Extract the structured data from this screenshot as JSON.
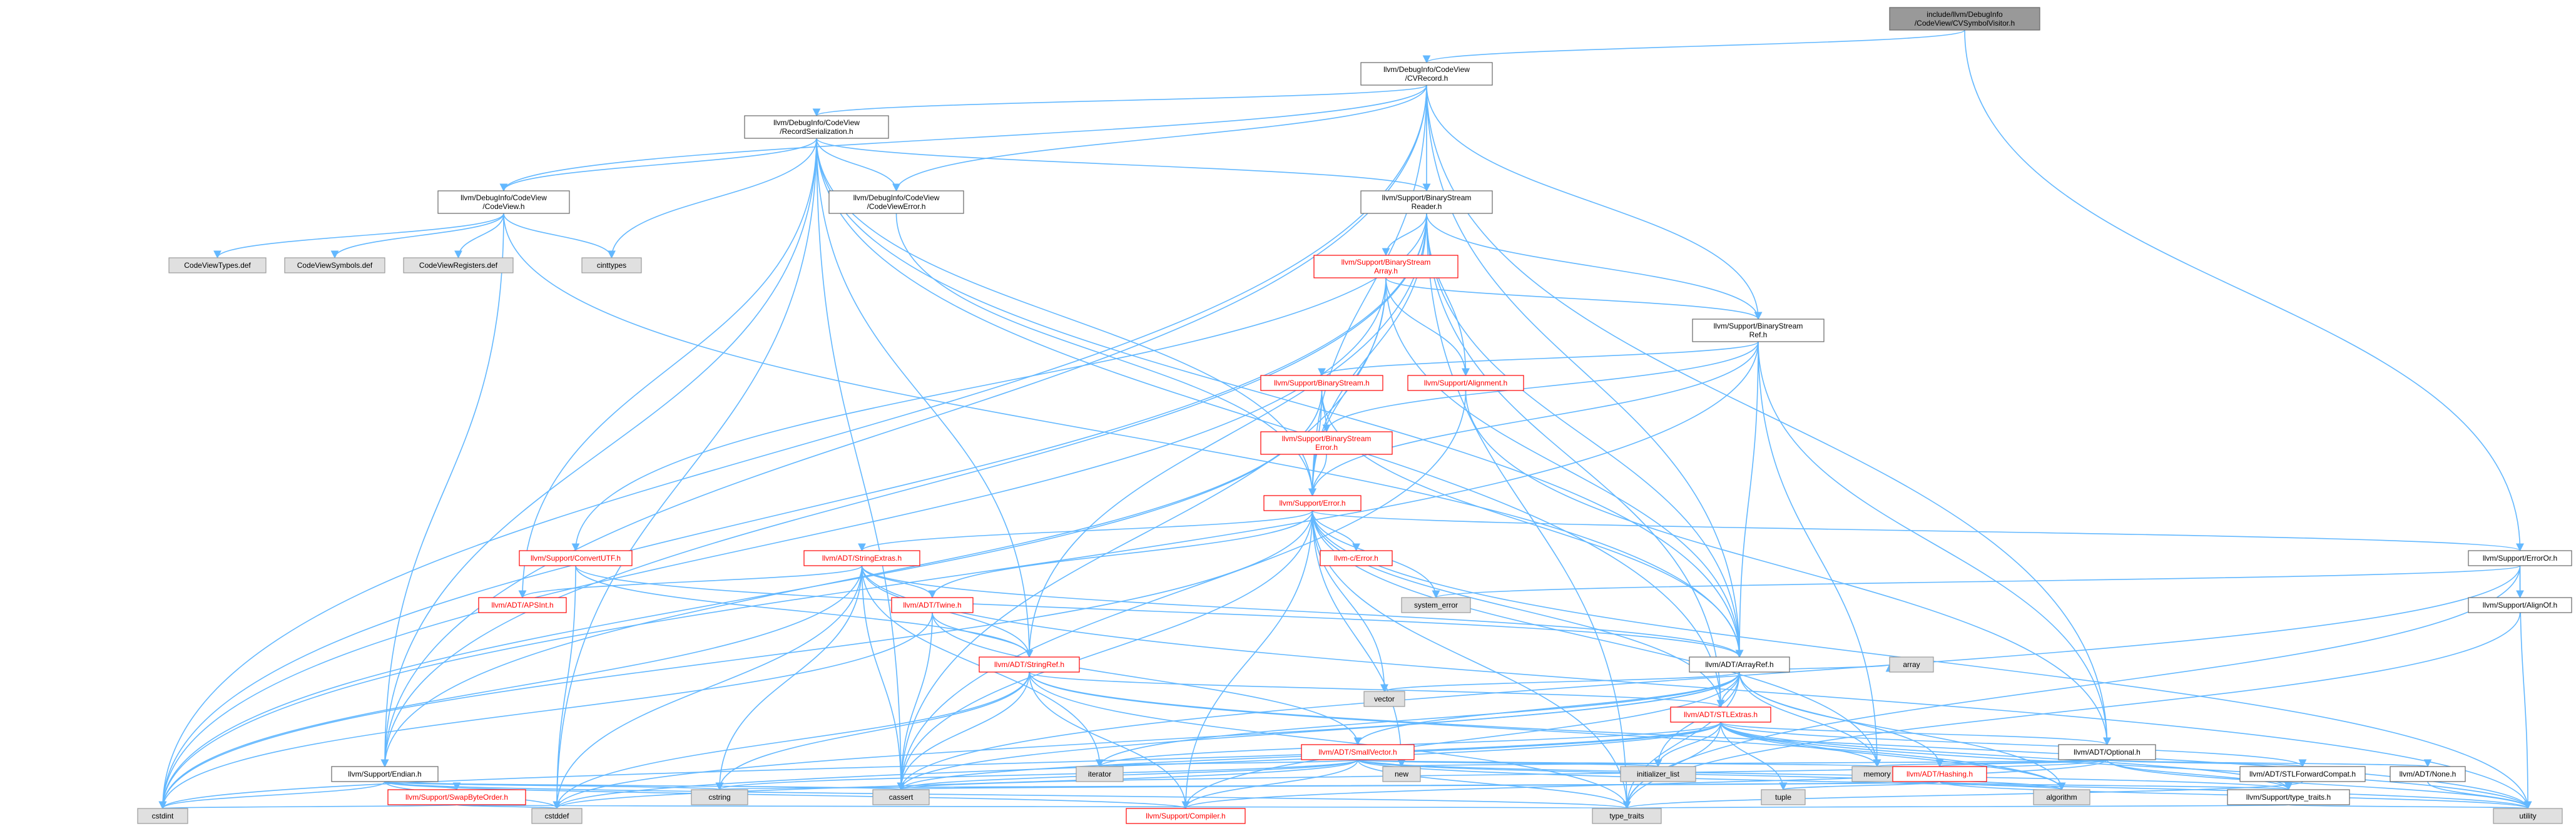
{
  "nodes": [
    {
      "id": "root",
      "lines": [
        "include/llvm/DebugInfo",
        "/CodeView/CVSymbolVisitor.h"
      ],
      "kind": "root"
    },
    {
      "id": "cvrecord",
      "lines": [
        "llvm/DebugInfo/CodeView",
        "/CVRecord.h"
      ],
      "kind": "white"
    },
    {
      "id": "recser",
      "lines": [
        "llvm/DebugInfo/CodeView",
        "/RecordSerialization.h"
      ],
      "kind": "white"
    },
    {
      "id": "codeview",
      "lines": [
        "llvm/DebugInfo/CodeView",
        "/CodeView.h"
      ],
      "kind": "white"
    },
    {
      "id": "cverror",
      "lines": [
        "llvm/DebugInfo/CodeView",
        "/CodeViewError.h"
      ],
      "kind": "white"
    },
    {
      "id": "bsreader",
      "lines": [
        "llvm/Support/BinaryStream",
        "Reader.h"
      ],
      "kind": "white"
    },
    {
      "id": "cvtypes",
      "lines": [
        "CodeViewTypes.def"
      ],
      "kind": "gray"
    },
    {
      "id": "cvsymbols",
      "lines": [
        "CodeViewSymbols.def"
      ],
      "kind": "gray"
    },
    {
      "id": "cvregisters",
      "lines": [
        "CodeViewRegisters.def"
      ],
      "kind": "gray"
    },
    {
      "id": "cinttypes",
      "lines": [
        "cinttypes"
      ],
      "kind": "gray"
    },
    {
      "id": "bsarray",
      "lines": [
        "llvm/Support/BinaryStream",
        "Array.h"
      ],
      "kind": "red"
    },
    {
      "id": "bsref",
      "lines": [
        "llvm/Support/BinaryStream",
        "Ref.h"
      ],
      "kind": "white"
    },
    {
      "id": "bstream",
      "lines": [
        "llvm/Support/BinaryStream.h"
      ],
      "kind": "red"
    },
    {
      "id": "alignment",
      "lines": [
        "llvm/Support/Alignment.h"
      ],
      "kind": "red"
    },
    {
      "id": "bserror",
      "lines": [
        "llvm/Support/BinaryStream",
        "Error.h"
      ],
      "kind": "red"
    },
    {
      "id": "error",
      "lines": [
        "llvm/Support/Error.h"
      ],
      "kind": "red"
    },
    {
      "id": "convutf",
      "lines": [
        "llvm/Support/ConvertUTF.h"
      ],
      "kind": "red"
    },
    {
      "id": "strextras",
      "lines": [
        "llvm/ADT/StringExtras.h"
      ],
      "kind": "red"
    },
    {
      "id": "cerror",
      "lines": [
        "llvm-c/Error.h"
      ],
      "kind": "red"
    },
    {
      "id": "erroror",
      "lines": [
        "llvm/Support/ErrorOr.h"
      ],
      "kind": "white"
    },
    {
      "id": "apsint",
      "lines": [
        "llvm/ADT/APSInt.h"
      ],
      "kind": "red"
    },
    {
      "id": "twine",
      "lines": [
        "llvm/ADT/Twine.h"
      ],
      "kind": "red"
    },
    {
      "id": "syserror",
      "lines": [
        "system_error"
      ],
      "kind": "gray"
    },
    {
      "id": "alignof",
      "lines": [
        "llvm/Support/AlignOf.h"
      ],
      "kind": "white"
    },
    {
      "id": "stringref",
      "lines": [
        "llvm/ADT/StringRef.h"
      ],
      "kind": "red"
    },
    {
      "id": "arrayref",
      "lines": [
        "llvm/ADT/ArrayRef.h"
      ],
      "kind": "white"
    },
    {
      "id": "vector",
      "lines": [
        "vector"
      ],
      "kind": "gray"
    },
    {
      "id": "array",
      "lines": [
        "array"
      ],
      "kind": "gray"
    },
    {
      "id": "stlextras",
      "lines": [
        "llvm/ADT/STLExtras.h"
      ],
      "kind": "red"
    },
    {
      "id": "smallvector",
      "lines": [
        "llvm/ADT/SmallVector.h"
      ],
      "kind": "red"
    },
    {
      "id": "optional",
      "lines": [
        "llvm/ADT/Optional.h"
      ],
      "kind": "white"
    },
    {
      "id": "endian",
      "lines": [
        "llvm/Support/Endian.h"
      ],
      "kind": "white"
    },
    {
      "id": "iterator",
      "lines": [
        "iterator"
      ],
      "kind": "gray"
    },
    {
      "id": "new",
      "lines": [
        "new"
      ],
      "kind": "gray"
    },
    {
      "id": "initlist",
      "lines": [
        "initializer_list"
      ],
      "kind": "gray"
    },
    {
      "id": "memory",
      "lines": [
        "memory"
      ],
      "kind": "gray"
    },
    {
      "id": "hashing",
      "lines": [
        "llvm/ADT/Hashing.h"
      ],
      "kind": "red"
    },
    {
      "id": "stlfwd",
      "lines": [
        "llvm/ADT/STLForwardCompat.h"
      ],
      "kind": "white"
    },
    {
      "id": "none",
      "lines": [
        "llvm/ADT/None.h"
      ],
      "kind": "white"
    },
    {
      "id": "swapbyte",
      "lines": [
        "llvm/Support/SwapByteOrder.h"
      ],
      "kind": "red"
    },
    {
      "id": "cstring",
      "lines": [
        "cstring"
      ],
      "kind": "gray"
    },
    {
      "id": "cassert",
      "lines": [
        "cassert"
      ],
      "kind": "gray"
    },
    {
      "id": "tuple",
      "lines": [
        "tuple"
      ],
      "kind": "gray"
    },
    {
      "id": "algorithm",
      "lines": [
        "algorithm"
      ],
      "kind": "gray"
    },
    {
      "id": "typetraitsh",
      "lines": [
        "llvm/Support/type_traits.h"
      ],
      "kind": "white"
    },
    {
      "id": "cstdint",
      "lines": [
        "cstdint"
      ],
      "kind": "gray"
    },
    {
      "id": "cstddef",
      "lines": [
        "cstddef"
      ],
      "kind": "gray"
    },
    {
      "id": "compiler",
      "lines": [
        "llvm/Support/Compiler.h"
      ],
      "kind": "red"
    },
    {
      "id": "typetraits",
      "lines": [
        "type_traits"
      ],
      "kind": "gray"
    },
    {
      "id": "utility",
      "lines": [
        "utility"
      ],
      "kind": "gray"
    }
  ],
  "edges": [
    [
      "root",
      "cvrecord"
    ],
    [
      "root",
      "erroror"
    ],
    [
      "cvrecord",
      "recser"
    ],
    [
      "cvrecord",
      "codeview"
    ],
    [
      "cvrecord",
      "cverror"
    ],
    [
      "cvrecord",
      "bsreader"
    ],
    [
      "cvrecord",
      "bsref"
    ],
    [
      "cvrecord",
      "error"
    ],
    [
      "cvrecord",
      "arrayref"
    ],
    [
      "cvrecord",
      "optional"
    ],
    [
      "cvrecord",
      "endian"
    ],
    [
      "cvrecord",
      "cstdint"
    ],
    [
      "recser",
      "codeview"
    ],
    [
      "recser",
      "cverror"
    ],
    [
      "recser",
      "bsreader"
    ],
    [
      "recser",
      "cinttypes"
    ],
    [
      "recser",
      "apsint"
    ],
    [
      "recser",
      "stringref"
    ],
    [
      "recser",
      "arrayref"
    ],
    [
      "recser",
      "stlextras"
    ],
    [
      "recser",
      "endian"
    ],
    [
      "recser",
      "error"
    ],
    [
      "recser",
      "cstddef"
    ],
    [
      "recser",
      "cassert"
    ],
    [
      "codeview",
      "cvtypes"
    ],
    [
      "codeview",
      "cvsymbols"
    ],
    [
      "codeview",
      "cvregisters"
    ],
    [
      "codeview",
      "cinttypes"
    ],
    [
      "codeview",
      "endian"
    ],
    [
      "codeview",
      "arrayref"
    ],
    [
      "codeview",
      "type_traits_dummy"
    ],
    [
      "cverror",
      "error"
    ],
    [
      "bsreader",
      "bsarray"
    ],
    [
      "bsreader",
      "bsref"
    ],
    [
      "bsreader",
      "alignment"
    ],
    [
      "bsreader",
      "error"
    ],
    [
      "bsreader",
      "convutf"
    ],
    [
      "bsreader",
      "stringref"
    ],
    [
      "bsreader",
      "arrayref"
    ],
    [
      "bsreader",
      "stlextras"
    ],
    [
      "bsreader",
      "endian"
    ],
    [
      "bsreader",
      "typetraits"
    ],
    [
      "bsreader",
      "cstdint"
    ],
    [
      "bsarray",
      "bsref"
    ],
    [
      "bsarray",
      "alignment"
    ],
    [
      "bsarray",
      "error"
    ],
    [
      "bsarray",
      "arrayref"
    ],
    [
      "bsarray",
      "cassert"
    ],
    [
      "bsarray",
      "cstdint"
    ],
    [
      "bsref",
      "bstream"
    ],
    [
      "bsref",
      "bserror"
    ],
    [
      "bsref",
      "error"
    ],
    [
      "bsref",
      "arrayref"
    ],
    [
      "bsref",
      "optional"
    ],
    [
      "bsref",
      "memory"
    ],
    [
      "bsref",
      "cstdint"
    ],
    [
      "bstream",
      "bserror"
    ],
    [
      "bstream",
      "error"
    ],
    [
      "bstream",
      "arrayref"
    ],
    [
      "bstream",
      "endian"
    ],
    [
      "bstream",
      "cstdint"
    ],
    [
      "alignment",
      "optional"
    ],
    [
      "alignment",
      "cassert"
    ],
    [
      "bserror",
      "error"
    ],
    [
      "error",
      "cerror"
    ],
    [
      "error",
      "strextras"
    ],
    [
      "error",
      "twine"
    ],
    [
      "error",
      "erroror"
    ],
    [
      "error",
      "syserror"
    ],
    [
      "error",
      "stlextras"
    ],
    [
      "error",
      "abi"
    ],
    [
      "error",
      "compiler"
    ],
    [
      "error",
      "cassert"
    ],
    [
      "error",
      "cstdint"
    ],
    [
      "error",
      "memory"
    ],
    [
      "error",
      "new"
    ],
    [
      "error",
      "vector"
    ],
    [
      "error",
      "utility"
    ],
    [
      "error",
      "typetraits"
    ],
    [
      "convutf",
      "arrayref"
    ],
    [
      "convutf",
      "stringref"
    ],
    [
      "convutf",
      "cstddef"
    ],
    [
      "strextras",
      "apsint"
    ],
    [
      "strextras",
      "arrayref"
    ],
    [
      "strextras",
      "stringref"
    ],
    [
      "strextras",
      "twine"
    ],
    [
      "strextras",
      "iterator"
    ],
    [
      "strextras",
      "cassert"
    ],
    [
      "strextras",
      "cstddef"
    ],
    [
      "strextras",
      "cstdint"
    ],
    [
      "strextras",
      "cstring"
    ],
    [
      "strextras",
      "utility"
    ],
    [
      "erroror",
      "alignof"
    ],
    [
      "erroror",
      "syserror"
    ],
    [
      "erroror",
      "typetraits"
    ],
    [
      "erroror",
      "utility"
    ],
    [
      "erroror",
      "cassert"
    ],
    [
      "twine",
      "smallvector"
    ],
    [
      "twine",
      "stringref"
    ],
    [
      "twine",
      "cassert"
    ],
    [
      "twine",
      "cstdint"
    ],
    [
      "alignof",
      "typetraits"
    ],
    [
      "stringref",
      "stlextras"
    ],
    [
      "stringref",
      "compiler"
    ],
    [
      "stringref",
      "algorithm"
    ],
    [
      "stringref",
      "cassert"
    ],
    [
      "stringref",
      "cstddef"
    ],
    [
      "stringref",
      "cstring"
    ],
    [
      "stringref",
      "limits"
    ],
    [
      "stringref",
      "typetraits"
    ],
    [
      "stringref",
      "utility"
    ],
    [
      "arrayref",
      "hashing"
    ],
    [
      "arrayref",
      "smallvector"
    ],
    [
      "arrayref",
      "stlextras"
    ],
    [
      "arrayref",
      "compiler"
    ],
    [
      "arrayref",
      "algorithm"
    ],
    [
      "arrayref",
      "array"
    ],
    [
      "arrayref",
      "cassert"
    ],
    [
      "arrayref",
      "cstddef"
    ],
    [
      "arrayref",
      "initlist"
    ],
    [
      "arrayref",
      "iterator"
    ],
    [
      "arrayref",
      "memory"
    ],
    [
      "arrayref",
      "typetraits"
    ],
    [
      "arrayref",
      "vector"
    ],
    [
      "stlextras",
      "optional"
    ],
    [
      "stlextras",
      "stlfwd"
    ],
    [
      "stlextras",
      "typetraitsh"
    ],
    [
      "stlextras",
      "algorithm"
    ],
    [
      "stlextras",
      "cassert"
    ],
    [
      "stlextras",
      "cstddef"
    ],
    [
      "stlextras",
      "cstdint"
    ],
    [
      "stlextras",
      "initlist"
    ],
    [
      "stlextras",
      "iterator"
    ],
    [
      "stlextras",
      "memory"
    ],
    [
      "stlextras",
      "tuple"
    ],
    [
      "stlextras",
      "typetraits"
    ],
    [
      "stlextras",
      "utility"
    ],
    [
      "smallvector",
      "compiler"
    ],
    [
      "smallvector",
      "typetraitsh"
    ],
    [
      "smallvector",
      "algorithm"
    ],
    [
      "smallvector",
      "cassert"
    ],
    [
      "smallvector",
      "cstddef"
    ],
    [
      "smallvector",
      "cstring"
    ],
    [
      "smallvector",
      "initlist"
    ],
    [
      "smallvector",
      "iterator"
    ],
    [
      "smallvector",
      "memory"
    ],
    [
      "smallvector",
      "new"
    ],
    [
      "smallvector",
      "typetraits"
    ],
    [
      "smallvector",
      "utility"
    ],
    [
      "optional",
      "hashing"
    ],
    [
      "optional",
      "none"
    ],
    [
      "optional",
      "stlfwd"
    ],
    [
      "optional",
      "compiler"
    ],
    [
      "optional",
      "typetraitsh"
    ],
    [
      "optional",
      "cassert"
    ],
    [
      "optional",
      "memory"
    ],
    [
      "optional",
      "new"
    ],
    [
      "optional",
      "utility"
    ],
    [
      "endian",
      "swapbyte"
    ],
    [
      "endian",
      "compiler"
    ],
    [
      "endian",
      "cassert"
    ],
    [
      "endian",
      "cstddef"
    ],
    [
      "endian",
      "cstdint"
    ],
    [
      "endian",
      "cstring"
    ],
    [
      "endian",
      "typetraits"
    ],
    [
      "hashing",
      "typetraitsh"
    ],
    [
      "hashing",
      "algorithm"
    ],
    [
      "hashing",
      "cassert"
    ],
    [
      "hashing",
      "cstring"
    ],
    [
      "hashing",
      "tuple"
    ],
    [
      "hashing",
      "utility"
    ],
    [
      "stlfwd",
      "typetraits"
    ],
    [
      "none",
      "utility"
    ],
    [
      "swapbyte",
      "cstddef"
    ],
    [
      "swapbyte",
      "cstdint"
    ],
    [
      "swapbyte",
      "typetraits"
    ],
    [
      "typetraitsh",
      "typetraits"
    ],
    [
      "typetraitsh",
      "utility"
    ]
  ]
}
